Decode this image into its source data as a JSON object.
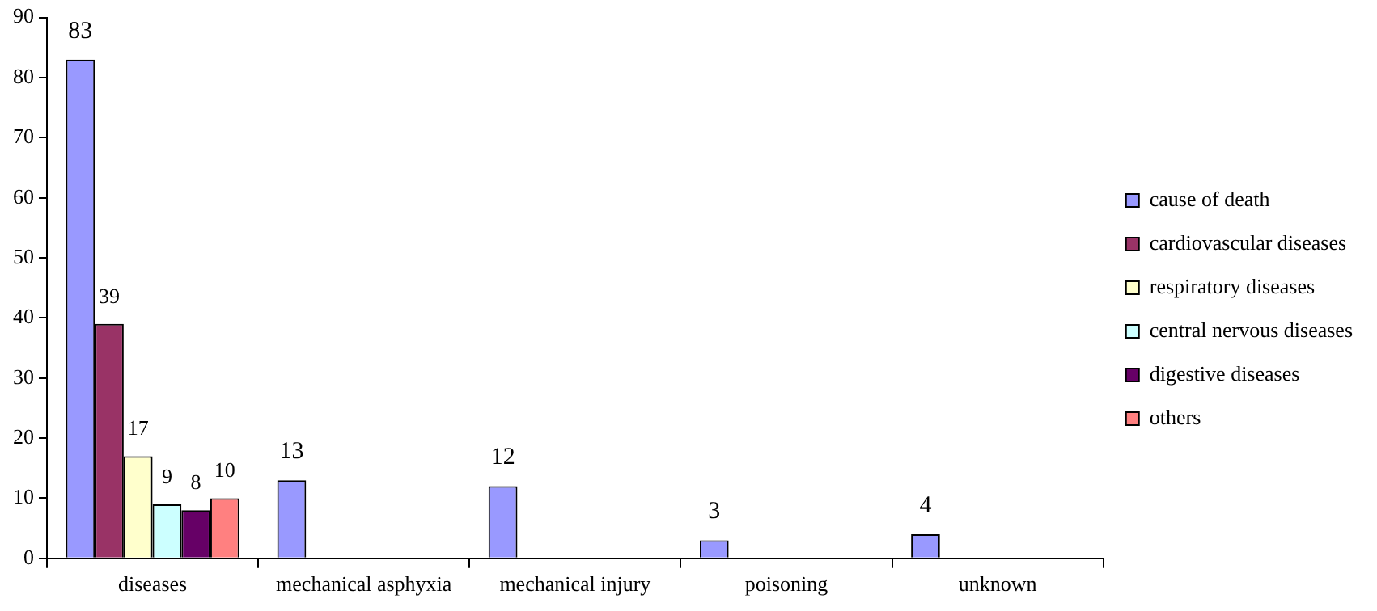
{
  "chart_data": {
    "type": "bar",
    "categories": [
      "diseases",
      "mechanical asphyxia",
      "mechanical injury",
      "poisoning",
      "unknown"
    ],
    "series": [
      {
        "name": "cause of death",
        "color": "#9999ff",
        "values": [
          83,
          13,
          12,
          3,
          4
        ]
      },
      {
        "name": "cardiovascular diseases",
        "color": "#993366",
        "values": [
          39,
          null,
          null,
          null,
          null
        ]
      },
      {
        "name": "respiratory diseases",
        "color": "#ffffcc",
        "values": [
          17,
          null,
          null,
          null,
          null
        ]
      },
      {
        "name": "central nervous diseases",
        "color": "#ccffff",
        "values": [
          9,
          null,
          null,
          null,
          null
        ]
      },
      {
        "name": "digestive diseases",
        "color": "#660066",
        "values": [
          8,
          null,
          null,
          null,
          null
        ]
      },
      {
        "name": "others",
        "color": "#ff8080",
        "values": [
          10,
          null,
          null,
          null,
          null
        ]
      }
    ],
    "ylim": [
      0,
      90
    ],
    "yticks": [
      0,
      10,
      20,
      30,
      40,
      50,
      60,
      70,
      80,
      90
    ],
    "grid": false,
    "legend": "right",
    "data_labels": true
  }
}
